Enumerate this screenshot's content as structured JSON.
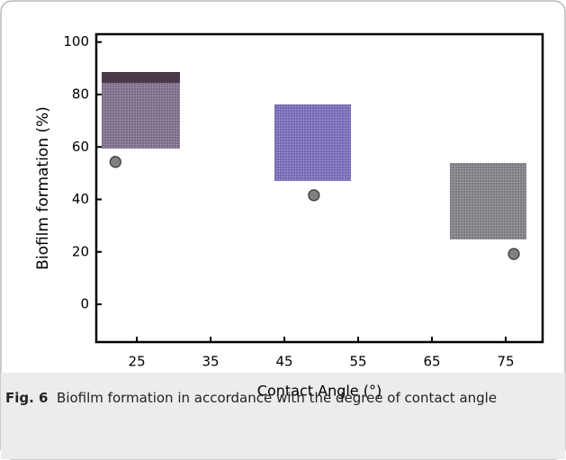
{
  "chart_data": {
    "type": "scatter",
    "x_label": "Contact Angle (°)",
    "y_label": "Biofilm formation (%)",
    "x": [
      22.1,
      49,
      76.1
    ],
    "values": [
      54.3,
      41.6,
      19.2
    ],
    "color": "#808080",
    "xlim": [
      19.5,
      80
    ],
    "ylim": [
      -14.4,
      103
    ],
    "xticks": [
      25,
      35,
      45,
      55,
      65,
      75
    ],
    "yticks": [
      0,
      20,
      40,
      60,
      80,
      100
    ]
  },
  "caption": {
    "label": "Fig. 6",
    "text": "Biofilm formation in accordance with the degree of contact angle"
  }
}
